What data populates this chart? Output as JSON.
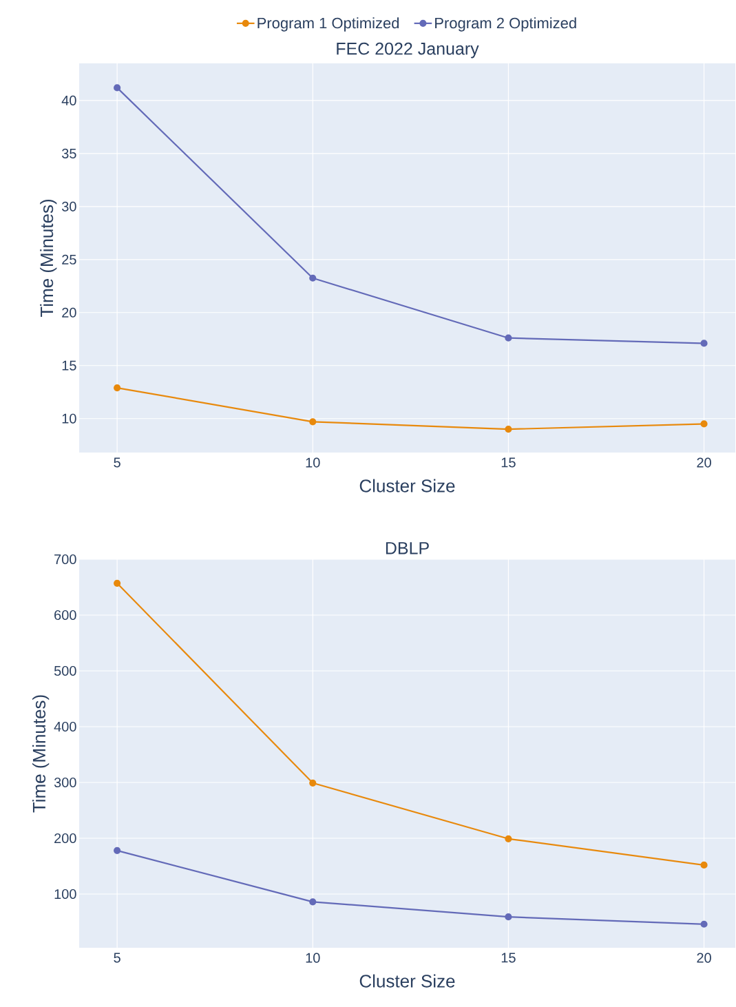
{
  "chart_data": [
    {
      "type": "line",
      "title": "FEC 2022 January",
      "xlabel": "Cluster Size",
      "ylabel": "Time (Minutes)",
      "x": [
        5,
        10,
        15,
        20
      ],
      "series": [
        {
          "name": "Program 1 Optimized",
          "color": "#e8890c",
          "values": [
            12.9,
            9.7,
            9.0,
            9.5
          ]
        },
        {
          "name": "Program 2 Optimized",
          "color": "#636ab8",
          "values": [
            41.2,
            23.25,
            17.6,
            17.1
          ]
        }
      ],
      "xlim": [
        4.03,
        20.8
      ],
      "ylim": [
        6.8,
        43.5
      ],
      "xticks": [
        5,
        10,
        15,
        20
      ],
      "yticks": [
        10,
        15,
        20,
        25,
        30,
        35,
        40
      ],
      "grid": true,
      "marker": "circle",
      "legend": "top"
    },
    {
      "type": "line",
      "title": "DBLP",
      "xlabel": "Cluster Size",
      "ylabel": "Time (Minutes)",
      "x": [
        5,
        10,
        15,
        20
      ],
      "series": [
        {
          "color": "#e8890c",
          "values": [
            657,
            299,
            199,
            152
          ]
        },
        {
          "color": "#636ab8",
          "values": [
            178,
            86,
            59,
            46
          ]
        }
      ],
      "xlim": [
        4.03,
        20.8
      ],
      "ylim": [
        3.7,
        700
      ],
      "xticks": [
        5,
        10,
        15,
        20
      ],
      "yticks": [
        100,
        200,
        300,
        400,
        500,
        600,
        700
      ],
      "grid": true,
      "marker": "circle"
    }
  ]
}
